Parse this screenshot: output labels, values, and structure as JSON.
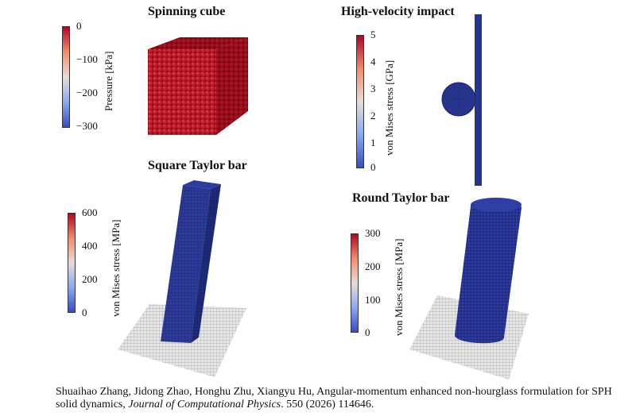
{
  "panels": {
    "spinning_cube": {
      "title": "Spinning cube",
      "colorbar_label": "Pressure [kPa]",
      "ticks": [
        "0",
        "−100",
        "−200",
        "−300"
      ]
    },
    "high_velocity": {
      "title": "High-velocity impact",
      "colorbar_label": "von Mises stress [GPa]",
      "ticks": [
        "5",
        "4",
        "3",
        "2",
        "1",
        "0"
      ]
    },
    "square_taylor": {
      "title": "Square Taylor bar",
      "colorbar_label": "von Mises stress [MPa]",
      "ticks": [
        "600",
        "400",
        "200",
        "0"
      ]
    },
    "round_taylor": {
      "title": "Round Taylor bar",
      "colorbar_label": "von Mises stress [MPa]",
      "ticks": [
        "300",
        "200",
        "100",
        "0"
      ]
    }
  },
  "caption": {
    "authors": "Shuaihao Zhang, Jidong Zhao, Honghu Zhu, Xiangyu Hu, Angular-momentum enhanced non-hourglass formulation for SPH solid dynamics,",
    "journal": "Journal of Computational Physics",
    "citation": ". 550 (2026) 114646."
  },
  "colors": {
    "red": "#b40426",
    "blue": "#26348c",
    "plate": "#d9d9d9"
  }
}
